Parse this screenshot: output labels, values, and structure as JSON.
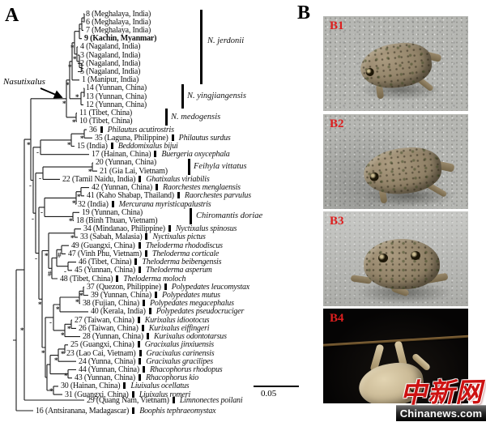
{
  "figure": {
    "panel_a_label": "A",
    "panel_b_label": "B",
    "genus_callout": "Nasutixalus",
    "scale_bar_label": "0.05"
  },
  "tree": {
    "support_symbols": {
      "star": "*",
      "dash": "-",
      "hash": "#"
    },
    "tips": [
      {
        "label": "8 (Meghalaya, India)"
      },
      {
        "label": "6 (Meghalaya, India)"
      },
      {
        "label": "7 (Meghalaya, India)"
      },
      {
        "label": "9 (Kachin, Myanmar)",
        "bold": true
      },
      {
        "label": "4 (Nagaland, India)"
      },
      {
        "label": "3 (Nagaland, India)"
      },
      {
        "label": "2 (Nagaland, India)"
      },
      {
        "label": "5 (Nagaland, India)"
      },
      {
        "label": "1 (Manipur, India)"
      },
      {
        "label": "14 (Yunnan, China)"
      },
      {
        "label": "13 (Yunnan, China)"
      },
      {
        "label": "12 (Yunnan, China)"
      },
      {
        "label": "11 (Tibet, China)"
      },
      {
        "label": "10 (Tibet, China)"
      },
      {
        "label": "36",
        "species": "Philautus acutirostris"
      },
      {
        "label": "35 (Laguna, Philippine)",
        "species": "Philautus surdus"
      },
      {
        "label": "15 (India)",
        "species": "Beddomixalus bijui"
      },
      {
        "label": "17 (Hainan, China)",
        "species": "Buergeria oxycephala"
      },
      {
        "label": "20 (Yunnan, China)"
      },
      {
        "label": "21 (Gia Lai, Vietnam)"
      },
      {
        "label": "22 (Tamil Naidu, India)",
        "species": "Ghatixalus viriabilis"
      },
      {
        "label": "42 (Yunnan, China)",
        "species": "Raorchestes menglaensis"
      },
      {
        "label": "41 (Kaho Shabap, Thailand)",
        "species": "Raorchestes parvulus"
      },
      {
        "label": "32 (India)",
        "species": "Mercurana myristicapalustris"
      },
      {
        "label": "19 (Yunnan, China)"
      },
      {
        "label": "18 (Binh Thuan, Vietnam)"
      },
      {
        "label": "34 (Mindanao, Philippine)",
        "species": "Nyctixalus spinosus"
      },
      {
        "label": "33 (Sabah, Malasia)",
        "species": "Nyctixalus pictus"
      },
      {
        "label": "49 (Guangxi, China)",
        "species": "Theloderma rhododiscus"
      },
      {
        "label": "47 (Vinh Phu, Vietnam)",
        "species": "Theloderma corticale"
      },
      {
        "label": "46 (Tibet, China)",
        "species": "Theloderma beibengensis"
      },
      {
        "label": "45 (Yunnan, China)",
        "species": "Theloderma asperum"
      },
      {
        "label": "48 (Tibet, China)",
        "species": "Theloderma moloch"
      },
      {
        "label": "37 (Quezon, Philippine)",
        "species": "Polypedates leucomystax"
      },
      {
        "label": "39 (Yunnan, China)",
        "species": "Polypedates mutus"
      },
      {
        "label": "38 (Fujian, China)",
        "species": "Polypedates megacephalus"
      },
      {
        "label": "40 (Kerala, India)",
        "species": "Polypedates pseudocruciger"
      },
      {
        "label": "27 (Taiwan, China)",
        "species": "Kurixalus idiootocus"
      },
      {
        "label": "26 (Taiwan, China)",
        "species": "Kurixalus eiffingeri"
      },
      {
        "label": "28 (Yunnan, China)",
        "species": "Kurixalus odontotarsus"
      },
      {
        "label": "25 (Guangxi, China)",
        "species": "Gracixalus jinxiuensis"
      },
      {
        "label": "23 (Lao Cai, Vietnam)",
        "species": "Gracixalus carinensis"
      },
      {
        "label": "24 (Yunna, China)",
        "species": "Gracixalus gracilipes"
      },
      {
        "label": "44 (Yunnan, China)",
        "species": "Rhacophorus rhodopus"
      },
      {
        "label": "43 (Yunnan, China)",
        "species": "Rhacophorus kio"
      },
      {
        "label": "30 (Hainan, China)",
        "species": "Liuixalus ocellatus"
      },
      {
        "label": "31 (Guangxi, China)",
        "species": "Liuixalus romeri"
      },
      {
        "label": "29 (Quang Nam, Vietnam)",
        "species": "Limnonectes poilani"
      },
      {
        "label": "16 (Antsiranana, Madagascar)",
        "species": "Boophis tephraeomystax"
      }
    ],
    "clade_brackets": [
      {
        "name": "N. jerdonii"
      },
      {
        "name": "N. yingjiangensis"
      },
      {
        "name": "N. medogensis"
      },
      {
        "name": "Feihyla vittatus"
      },
      {
        "name": "Chiromantis doriae"
      }
    ]
  },
  "photos": [
    {
      "id": "B1"
    },
    {
      "id": "B2"
    },
    {
      "id": "B3"
    },
    {
      "id": "B4"
    }
  ],
  "watermark": {
    "logo": "中新网",
    "site": "Chinanews.com"
  }
}
